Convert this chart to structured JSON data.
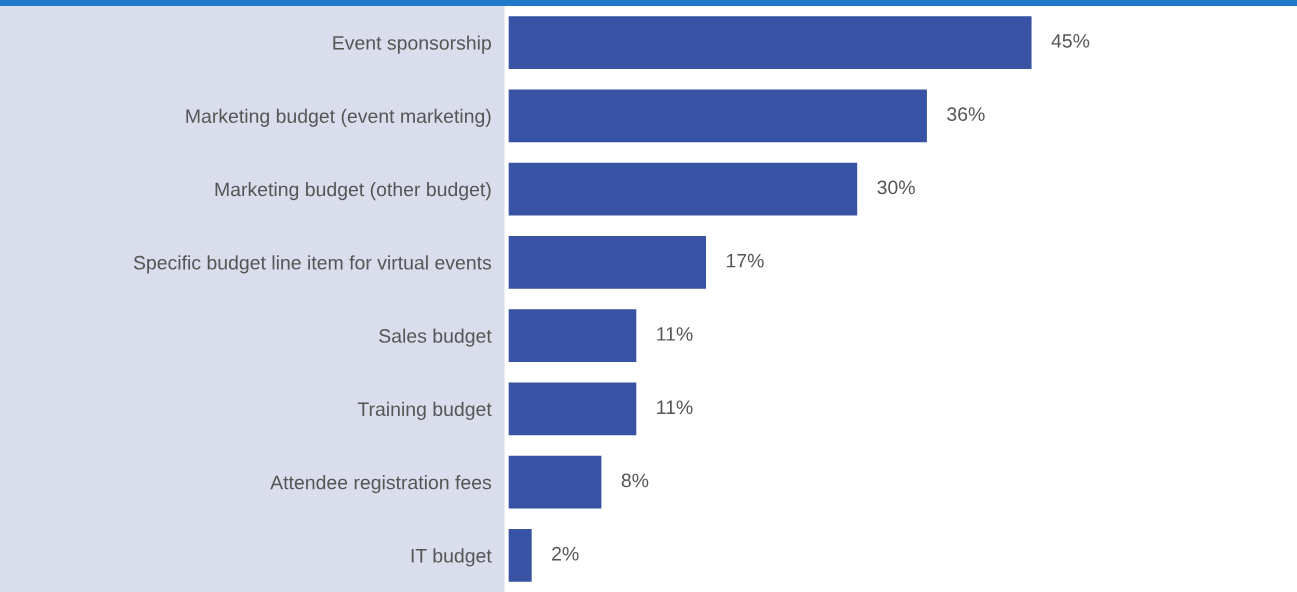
{
  "chart_data": {
    "type": "bar",
    "orientation": "horizontal",
    "tick_labels": "y",
    "categories": [
      "Event sponsorship",
      "Marketing budget (event marketing)",
      "Marketing budget (other budget)",
      "Specific budget line item for virtual events",
      "Sales budget",
      "Training budget",
      "Attendee registration fees",
      "IT budget"
    ],
    "values": [
      45,
      36,
      30,
      17,
      11,
      11,
      8,
      2
    ],
    "value_labels": [
      "45%",
      "36%",
      "30%",
      "17%",
      "11%",
      "11%",
      "8%",
      "2%"
    ],
    "color": "#3953a4",
    "grid": false,
    "legend": false
  }
}
